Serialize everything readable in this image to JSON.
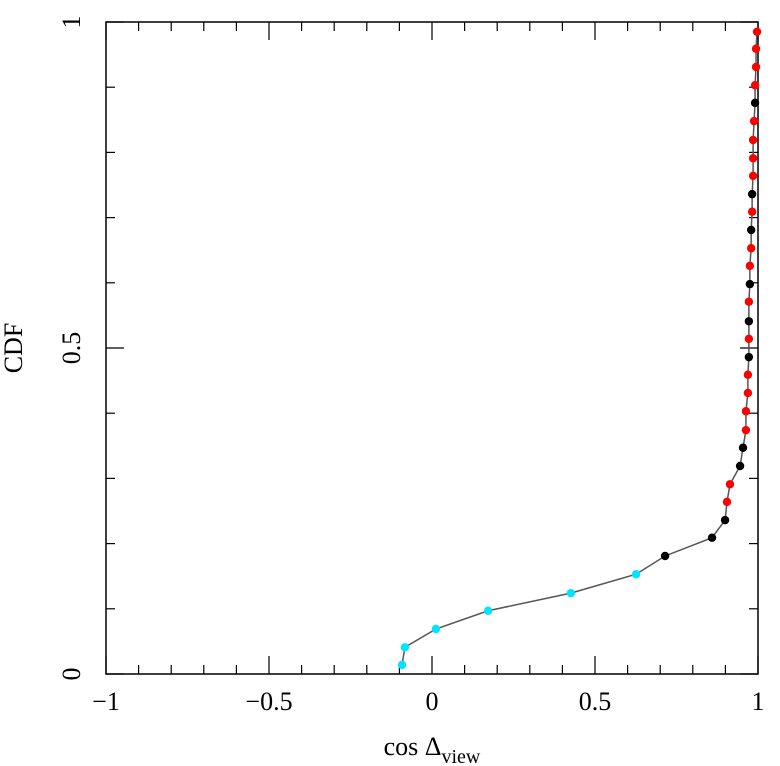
{
  "chart_data": {
    "type": "line",
    "xlabel": {
      "text": "cos Δ",
      "subscript": "view"
    },
    "ylabel": "CDF",
    "x": [
      -0.092,
      -0.083,
      0.012,
      0.172,
      0.426,
      0.626,
      0.715,
      0.859,
      0.899,
      0.905,
      0.914,
      0.945,
      0.954,
      0.963,
      0.963,
      0.969,
      0.969,
      0.972,
      0.972,
      0.972,
      0.972,
      0.975,
      0.975,
      0.979,
      0.979,
      0.982,
      0.982,
      0.985,
      0.985,
      0.985,
      0.988,
      0.991,
      0.991,
      0.994,
      0.994,
      0.997
    ],
    "values": [
      0.014,
      0.041,
      0.069,
      0.097,
      0.124,
      0.153,
      0.181,
      0.209,
      0.236,
      0.264,
      0.291,
      0.319,
      0.347,
      0.374,
      0.403,
      0.431,
      0.459,
      0.486,
      0.514,
      0.541,
      0.571,
      0.598,
      0.626,
      0.653,
      0.681,
      0.709,
      0.736,
      0.764,
      0.791,
      0.819,
      0.848,
      0.876,
      0.903,
      0.931,
      0.959,
      0.985
    ],
    "line_color": "#555555",
    "point_colors": [
      "#00e5ff",
      "#00e5ff",
      "#00e5ff",
      "#00e5ff",
      "#00e5ff",
      "#00e5ff",
      "#000000",
      "#000000",
      "#000000",
      "#ff0000",
      "#ff0000",
      "#000000",
      "#000000",
      "#ff0000",
      "#ff0000",
      "#ff0000",
      "#ff0000",
      "#000000",
      "#ff0000",
      "#000000",
      "#ff0000",
      "#000000",
      "#ff0000",
      "#ff0000",
      "#000000",
      "#ff0000",
      "#000000",
      "#ff0000",
      "#ff0000",
      "#ff0000",
      "#ff0000",
      "#000000",
      "#ff0000",
      "#ff0000",
      "#ff0000",
      "#ff0000"
    ],
    "xlim": [
      -1,
      1
    ],
    "ylim": [
      0,
      1
    ],
    "xticks": [
      {
        "value": -1,
        "label": "−1"
      },
      {
        "value": -0.5,
        "label": "−0.5"
      },
      0,
      0.5,
      1
    ],
    "yticks": [
      0,
      0.5,
      1
    ],
    "xminorticks": [
      -0.9,
      -0.8,
      -0.7,
      -0.6,
      -0.4,
      -0.3,
      -0.2,
      -0.1,
      0.1,
      0.2,
      0.3,
      0.4,
      0.6,
      0.7,
      0.8,
      0.9
    ],
    "yminorticks": [
      0.1,
      0.2,
      0.3,
      0.4,
      0.6,
      0.7,
      0.8,
      0.9
    ]
  }
}
